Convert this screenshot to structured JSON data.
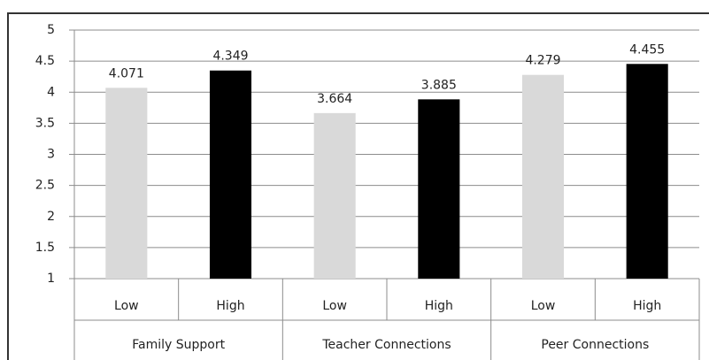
{
  "chart_data": {
    "type": "bar",
    "groups": [
      {
        "name": "Family Support",
        "categories": [
          "Low",
          "High"
        ],
        "values": [
          4.071,
          4.349
        ],
        "colors": [
          "#d9d9d9",
          "#000000"
        ]
      },
      {
        "name": "Teacher Connections",
        "categories": [
          "Low",
          "High"
        ],
        "values": [
          3.664,
          3.885
        ],
        "colors": [
          "#d9d9d9",
          "#000000"
        ]
      },
      {
        "name": "Peer Connections",
        "categories": [
          "Low",
          "High"
        ],
        "values": [
          4.279,
          4.455
        ],
        "colors": [
          "#d9d9d9",
          "#000000"
        ]
      }
    ],
    "ylim": [
      1,
      5
    ],
    "yticks": [
      1,
      1.5,
      2,
      2.5,
      3,
      3.5,
      4,
      4.5,
      5
    ],
    "grid": true
  }
}
